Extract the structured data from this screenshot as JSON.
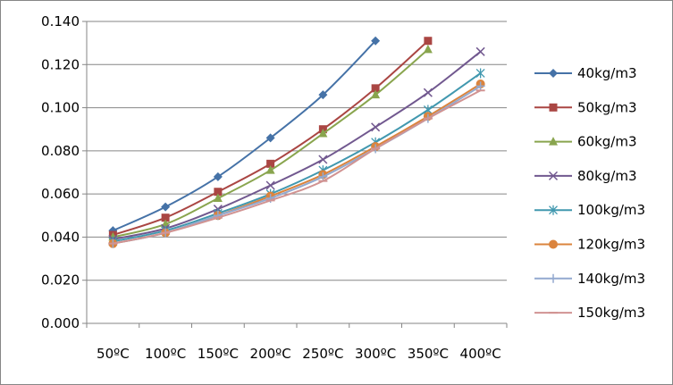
{
  "chart_data": {
    "type": "line",
    "title": "",
    "xlabel": "",
    "ylabel": "",
    "categories": [
      "50ºC",
      "100ºC",
      "150ºC",
      "200ºC",
      "250ºC",
      "300ºC",
      "350ºC",
      "400ºC"
    ],
    "ylim": [
      0,
      0.14
    ],
    "yticks": [
      "0.000",
      "0.020",
      "0.040",
      "0.060",
      "0.080",
      "0.100",
      "0.120",
      "0.140"
    ],
    "grid": "horizontal",
    "legend": "right",
    "series": [
      {
        "name": "40kg/m3",
        "color": "#4572A7",
        "marker": "diamond",
        "values": [
          0.043,
          0.054,
          0.068,
          0.086,
          0.106,
          0.131,
          null,
          null
        ]
      },
      {
        "name": "50kg/m3",
        "color": "#AA4643",
        "marker": "square",
        "values": [
          0.041,
          0.049,
          0.061,
          0.074,
          0.09,
          0.109,
          0.131,
          null
        ]
      },
      {
        "name": "60kg/m3",
        "color": "#89A54E",
        "marker": "triangle",
        "values": [
          0.04,
          0.046,
          0.058,
          0.071,
          0.088,
          0.106,
          0.127,
          null
        ]
      },
      {
        "name": "80kg/m3",
        "color": "#71588F",
        "marker": "x",
        "values": [
          0.039,
          0.044,
          0.053,
          0.064,
          0.076,
          0.091,
          0.107,
          0.126
        ]
      },
      {
        "name": "100kg/m3",
        "color": "#4198AF",
        "marker": "star",
        "values": [
          0.038,
          0.043,
          0.051,
          0.06,
          0.071,
          0.084,
          0.099,
          0.116
        ]
      },
      {
        "name": "120kg/m3",
        "color": "#DB843D",
        "marker": "circle",
        "values": [
          0.037,
          0.042,
          0.05,
          0.059,
          0.069,
          0.082,
          0.096,
          0.111
        ]
      },
      {
        "name": "140kg/m3",
        "color": "#93A9CF",
        "marker": "plus",
        "values": [
          0.037,
          0.042,
          0.05,
          0.058,
          0.068,
          0.081,
          0.095,
          0.11
        ]
      },
      {
        "name": "150kg/m3",
        "color": "#D19392",
        "marker": "dash",
        "values": [
          0.037,
          0.042,
          0.049,
          0.057,
          0.066,
          0.081,
          0.095,
          0.108
        ]
      }
    ]
  }
}
